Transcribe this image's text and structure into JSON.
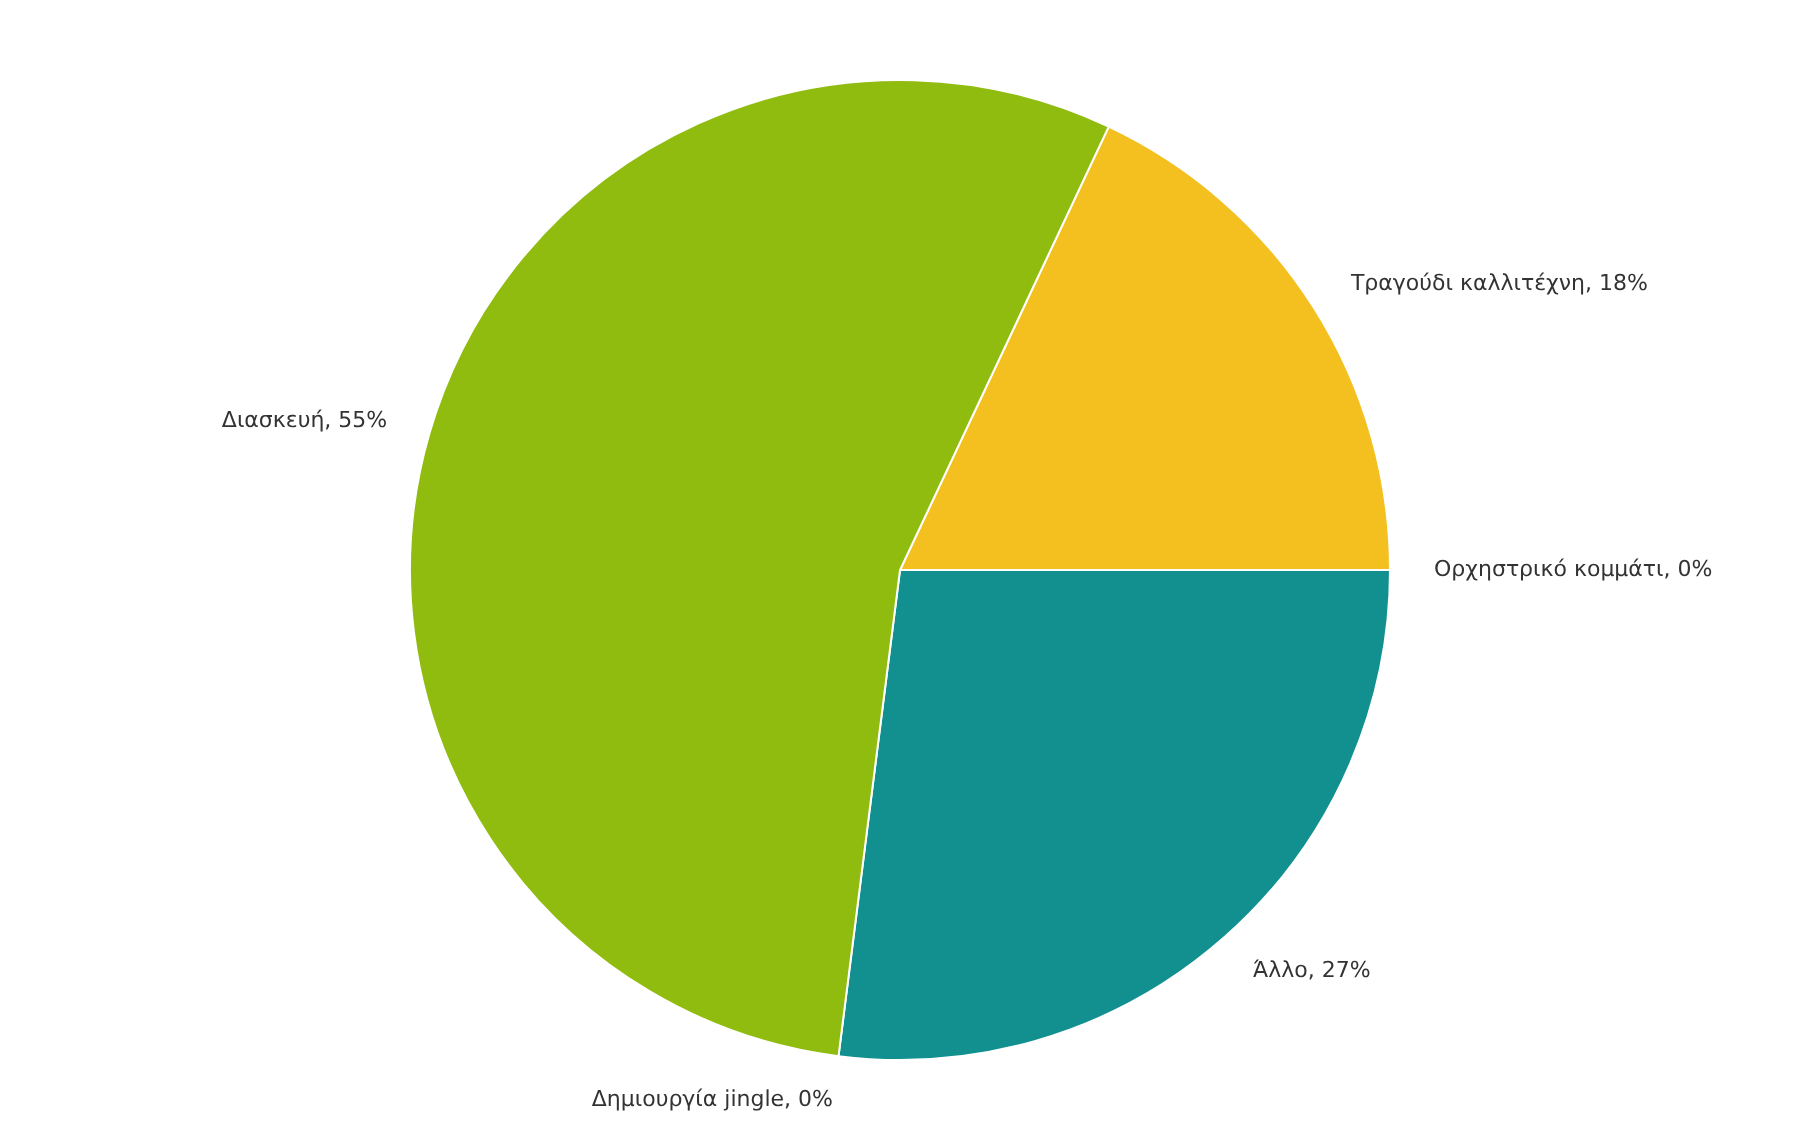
{
  "chart_data": {
    "type": "pie",
    "categories": [
      "Τραγούδι καλλιτέχνη",
      "Ορχηστρικό κομμάτι",
      "Άλλο",
      "Δημιουργία jingle",
      "Διασκευή"
    ],
    "values": [
      18,
      0,
      27,
      0,
      55
    ],
    "value_labels": [
      ", 18%",
      ", 0%",
      ", 27%",
      ", 0%",
      ", 55%"
    ],
    "colors": [
      "#f4c020",
      "#e0602a",
      "#129090",
      "#7a5ab0",
      "#90bc10"
    ],
    "legend": false
  }
}
